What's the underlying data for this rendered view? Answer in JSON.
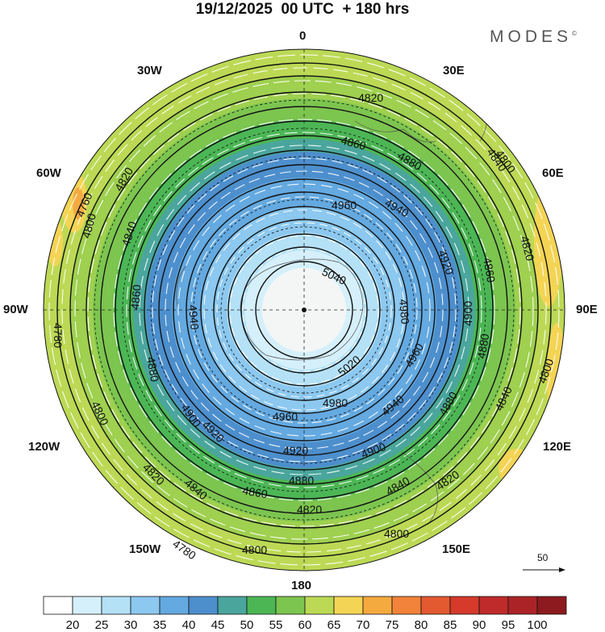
{
  "title": "19/12/2025  00 UTC  + 180 hrs",
  "brand": "MODES",
  "brand_mark": "©",
  "longitude_labels": {
    "north": "0",
    "south": "180",
    "west": "90W",
    "east": "90E",
    "w30": "30W",
    "e30": "30E",
    "w60": "60W",
    "e60": "60E",
    "w120": "120W",
    "e120": "120E",
    "w150": "150W",
    "e150": "150E"
  },
  "contour_labels": [
    "4760",
    "4780",
    "4800",
    "4820",
    "4840",
    "4860",
    "4880",
    "4900",
    "4920",
    "4940",
    "4960",
    "4980",
    "5020",
    "5040"
  ],
  "reference_vector": {
    "value": "50",
    "icon": "arrow-right-icon"
  },
  "colorbar": {
    "ticks": [
      "20",
      "25",
      "30",
      "35",
      "40",
      "45",
      "50",
      "55",
      "60",
      "65",
      "70",
      "75",
      "80",
      "85",
      "90",
      "95",
      "100"
    ],
    "colors": [
      "#ffffff",
      "#d6f0fb",
      "#b4e1f6",
      "#8cc8ef",
      "#64a9e0",
      "#4d8fcd",
      "#4aa69d",
      "#4cb655",
      "#7cc54f",
      "#bcd955",
      "#f4d454",
      "#f5aa40",
      "#f1833a",
      "#e35a31",
      "#d53a2b",
      "#bf2a2a",
      "#ab2327",
      "#8d1a1e"
    ]
  }
}
